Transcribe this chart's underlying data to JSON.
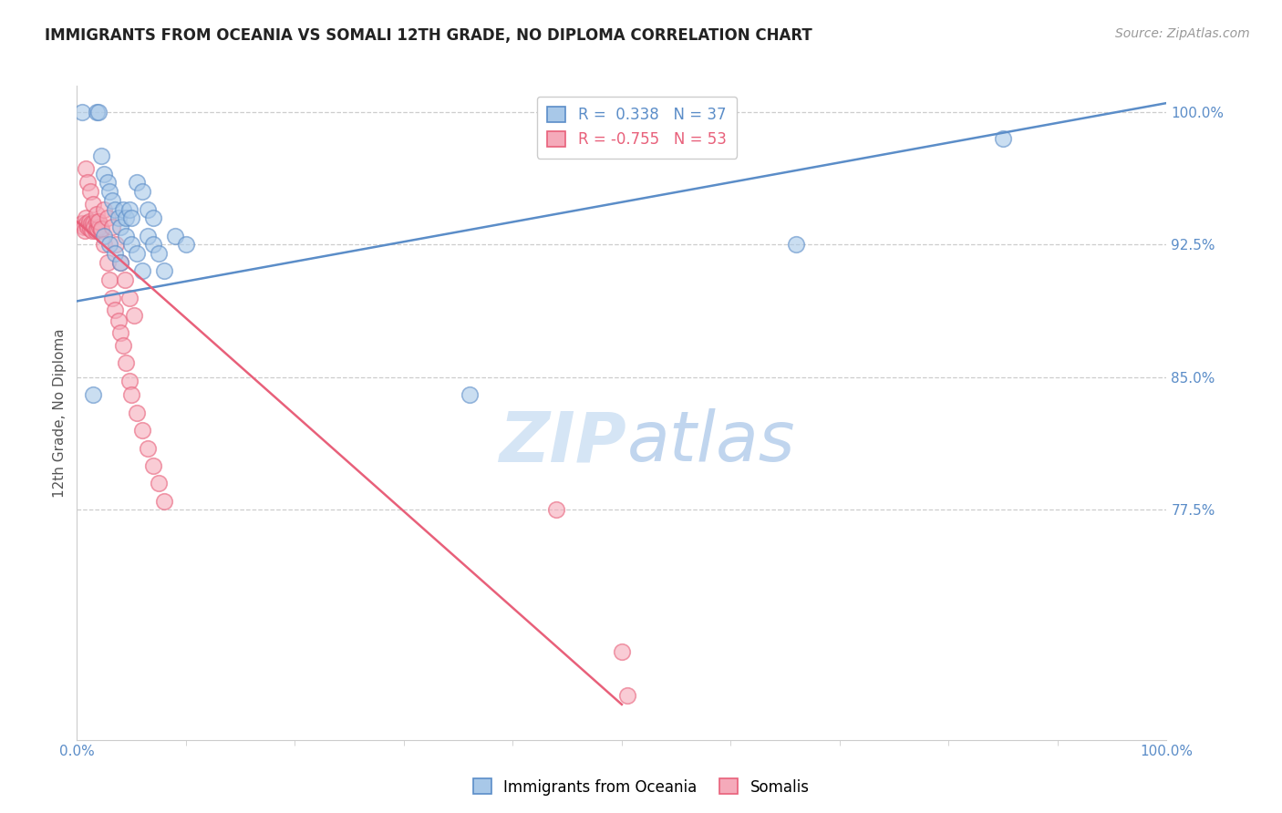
{
  "title": "IMMIGRANTS FROM OCEANIA VS SOMALI 12TH GRADE, NO DIPLOMA CORRELATION CHART",
  "source": "Source: ZipAtlas.com",
  "ylabel": "12th Grade, No Diploma",
  "legend_blue_r": "0.338",
  "legend_blue_n": "37",
  "legend_pink_r": "-0.755",
  "legend_pink_n": "53",
  "watermark_zip": "ZIP",
  "watermark_atlas": "atlas",
  "blue_scatter_x": [
    0.005,
    0.018,
    0.02,
    0.022,
    0.025,
    0.028,
    0.03,
    0.032,
    0.035,
    0.038,
    0.04,
    0.042,
    0.045,
    0.048,
    0.05,
    0.055,
    0.06,
    0.065,
    0.07,
    0.025,
    0.03,
    0.035,
    0.04,
    0.045,
    0.05,
    0.055,
    0.06,
    0.065,
    0.07,
    0.075,
    0.08,
    0.09,
    0.1,
    0.015,
    0.36,
    0.66,
    0.85
  ],
  "blue_scatter_y": [
    1.0,
    1.0,
    1.0,
    0.975,
    0.965,
    0.96,
    0.955,
    0.95,
    0.945,
    0.94,
    0.935,
    0.945,
    0.94,
    0.945,
    0.94,
    0.96,
    0.955,
    0.945,
    0.94,
    0.93,
    0.925,
    0.92,
    0.915,
    0.93,
    0.925,
    0.92,
    0.91,
    0.93,
    0.925,
    0.92,
    0.91,
    0.93,
    0.925,
    0.84,
    0.84,
    0.925,
    0.985
  ],
  "pink_scatter_x": [
    0.005,
    0.006,
    0.007,
    0.008,
    0.009,
    0.01,
    0.011,
    0.012,
    0.013,
    0.014,
    0.015,
    0.016,
    0.017,
    0.018,
    0.019,
    0.02,
    0.021,
    0.022,
    0.008,
    0.01,
    0.012,
    0.015,
    0.018,
    0.02,
    0.022,
    0.025,
    0.028,
    0.03,
    0.032,
    0.035,
    0.038,
    0.04,
    0.042,
    0.045,
    0.048,
    0.05,
    0.055,
    0.06,
    0.065,
    0.07,
    0.075,
    0.08,
    0.025,
    0.028,
    0.032,
    0.036,
    0.04,
    0.044,
    0.048,
    0.052,
    0.44,
    0.5,
    0.505
  ],
  "pink_scatter_y": [
    0.937,
    0.935,
    0.933,
    0.94,
    0.937,
    0.935,
    0.938,
    0.934,
    0.937,
    0.933,
    0.937,
    0.935,
    0.933,
    0.938,
    0.934,
    0.938,
    0.935,
    0.933,
    0.968,
    0.96,
    0.955,
    0.948,
    0.942,
    0.938,
    0.934,
    0.925,
    0.915,
    0.905,
    0.895,
    0.888,
    0.882,
    0.875,
    0.868,
    0.858,
    0.848,
    0.84,
    0.83,
    0.82,
    0.81,
    0.8,
    0.79,
    0.78,
    0.945,
    0.94,
    0.935,
    0.925,
    0.915,
    0.905,
    0.895,
    0.885,
    0.775,
    0.695,
    0.67
  ],
  "blue_line_x0": 0.0,
  "blue_line_x1": 1.0,
  "blue_line_y0": 0.893,
  "blue_line_y1": 1.005,
  "pink_line_x0": 0.0,
  "pink_line_x1": 0.5,
  "pink_line_y0": 0.938,
  "pink_line_y1": 0.665,
  "blue_color": "#5B8DC8",
  "blue_fill": "#A8C8E8",
  "pink_color": "#E8607A",
  "pink_fill": "#F5AABA",
  "bg_color": "#FFFFFF",
  "grid_color": "#C8C8C8",
  "axis_label_color": "#5B8DC8",
  "title_color": "#222222",
  "source_color": "#999999",
  "ylabel_color": "#555555",
  "watermark_zip_color": "#D5E5F5",
  "watermark_atlas_color": "#C0D5EE",
  "x_ticks": [
    0.0,
    1.0
  ],
  "x_tick_labels": [
    "0.0%",
    "100.0%"
  ],
  "y_ticks": [
    0.775,
    0.85,
    0.925,
    1.0
  ],
  "y_tick_labels": [
    "77.5%",
    "85.0%",
    "92.5%",
    "100.0%"
  ],
  "xmin": 0.0,
  "xmax": 1.0,
  "ymin": 0.645,
  "ymax": 1.015,
  "title_fontsize": 12,
  "source_fontsize": 10,
  "tick_fontsize": 11,
  "ylabel_fontsize": 11,
  "legend_fontsize": 12,
  "wm_zip_fontsize": 55,
  "wm_atlas_fontsize": 55,
  "scatter_size": 160,
  "scatter_alpha": 0.6,
  "scatter_lw": 1.2,
  "line_lw": 1.8,
  "bottom_legend_labels": [
    "Immigrants from Oceania",
    "Somalis"
  ]
}
